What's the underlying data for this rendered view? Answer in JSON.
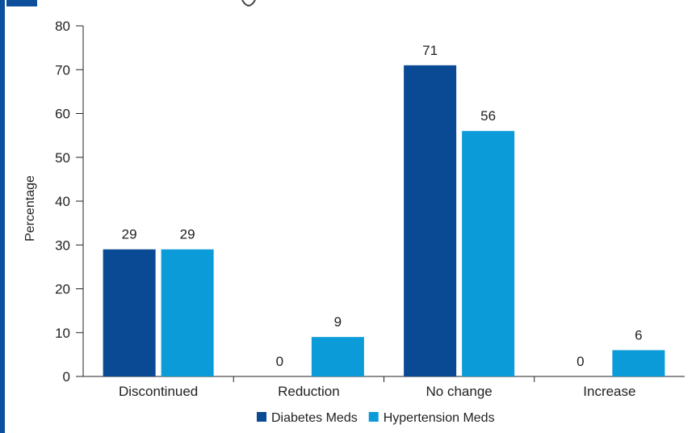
{
  "chart_data": {
    "type": "bar",
    "title": "",
    "xlabel": "",
    "ylabel": "Percentage",
    "ylim": [
      0,
      80
    ],
    "yticks": [
      0,
      10,
      20,
      30,
      40,
      50,
      60,
      70,
      80
    ],
    "categories": [
      "Discontinued",
      "Reduction",
      "No change",
      "Increase"
    ],
    "series": [
      {
        "name": "Diabetes Meds",
        "color": "#0a4a94",
        "values": [
          29,
          0,
          71,
          0
        ]
      },
      {
        "name": "Hypertension Meds",
        "color": "#0a9bd8",
        "values": [
          29,
          9,
          56,
          6
        ]
      }
    ],
    "legend_position": "bottom",
    "grid": false
  }
}
